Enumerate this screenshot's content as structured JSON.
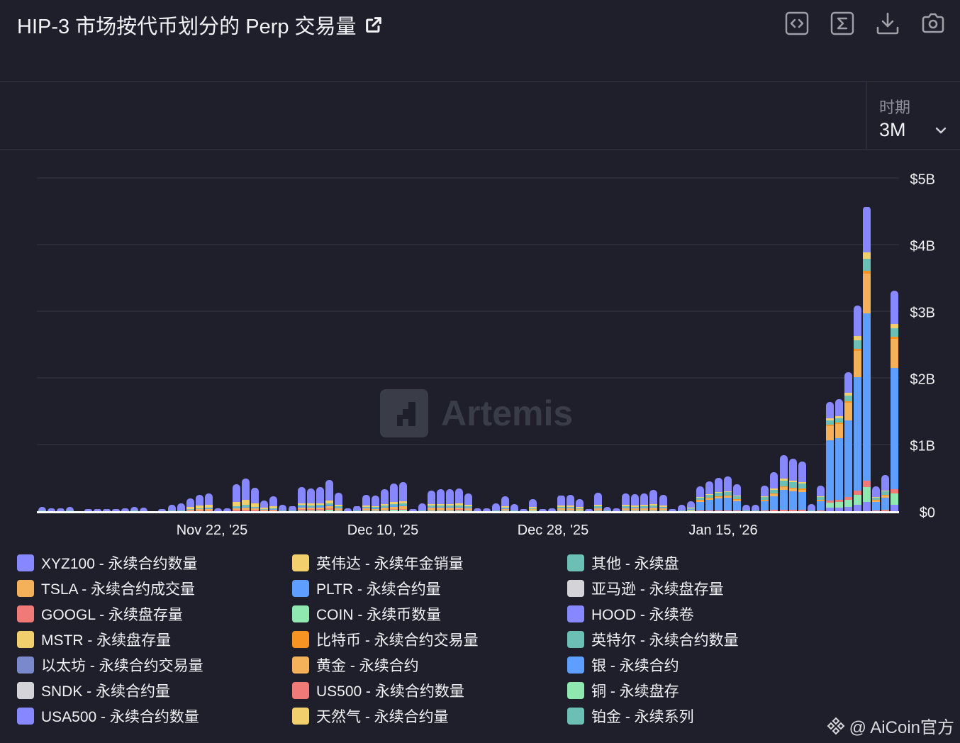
{
  "header": {
    "title": "HIP-3 市场按代币划分的 Perp 交易量",
    "external_link_icon": "external-link-icon",
    "tools": [
      {
        "name": "embed-code",
        "icon": "code-icon"
      },
      {
        "name": "formula",
        "icon": "sigma-icon"
      },
      {
        "name": "download",
        "icon": "download-icon"
      },
      {
        "name": "screenshot",
        "icon": "camera-icon"
      }
    ]
  },
  "period": {
    "label": "时期",
    "value": "3M"
  },
  "watermark": "Artemis",
  "credit": "@ AiCoin官方",
  "colors": {
    "background": "#1e1f2a",
    "purple": "#8787ff",
    "orange": "#f5b05a",
    "red": "#f07a78",
    "yellow": "#f0cf6c",
    "slate": "#7a88cc",
    "grey": "#d4d4d8",
    "blue": "#5e9eff",
    "green": "#8fe8b0",
    "deeporange": "#f79322",
    "teal": "#6bbfb5"
  },
  "chart_data": {
    "type": "bar",
    "stacked": true,
    "title": "HIP-3 市场按代币划分的 Perp 交易量",
    "xlabel": "",
    "ylabel": "",
    "ylim": [
      0,
      5000000000
    ],
    "yticks": [
      "$0",
      "$1B",
      "$2B",
      "$3B",
      "$4B",
      "$5B"
    ],
    "xticks": [
      {
        "label": "Nov 22, '25",
        "bar_index": 18
      },
      {
        "label": "Dec 10, '25",
        "bar_index": 36
      },
      {
        "label": "Dec 28, '25",
        "bar_index": 54
      },
      {
        "label": "Jan 15, '26",
        "bar_index": 72
      }
    ],
    "grid": true,
    "legend_position": "bottom",
    "unit": "USD billions",
    "series": [
      {
        "name": "XYZ100 - 永续合约数量",
        "color": "#8787ff"
      },
      {
        "name": "TSLA - 永续合约成交量",
        "color": "#f5b05a"
      },
      {
        "name": "GOOGL - 永续盘存量",
        "color": "#f07a78"
      },
      {
        "name": "MSTR - 永续盘存量",
        "color": "#f0cf6c"
      },
      {
        "name": "以太坊 - 永续合约交易量",
        "color": "#7a88cc"
      },
      {
        "name": "SNDK - 永续合约量",
        "color": "#d4d4d8"
      },
      {
        "name": "USA500 - 永续合约数量",
        "color": "#8787ff"
      },
      {
        "name": "英伟达 - 永续年金销量",
        "color": "#f0cf6c"
      },
      {
        "name": "PLTR - 永续合约量",
        "color": "#5e9eff"
      },
      {
        "name": "COIN - 永续币数量",
        "color": "#8fe8b0"
      },
      {
        "name": "比特币 - 永续合约交易量",
        "color": "#f79322"
      },
      {
        "name": "黄金 - 永续合约",
        "color": "#f5b05a"
      },
      {
        "name": "US500 - 永续合约数量",
        "color": "#f07a78"
      },
      {
        "name": "天然气 - 永续合约量",
        "color": "#f0cf6c"
      },
      {
        "name": "其他 - 永续盘",
        "color": "#6bbfb5"
      },
      {
        "name": "亚马逊 - 永续盘存量",
        "color": "#d4d4d8"
      },
      {
        "name": "HOOD - 永续卷",
        "color": "#8787ff"
      },
      {
        "name": "英特尔 - 永续合约数量",
        "color": "#6bbfb5"
      },
      {
        "name": "银 - 永续合约",
        "color": "#5e9eff"
      },
      {
        "name": "铜 - 永续盘存",
        "color": "#8fe8b0"
      },
      {
        "name": "铂金 - 永续系列",
        "color": "#6bbfb5"
      }
    ],
    "bar_totals_billion": [
      0.06,
      0.04,
      0.04,
      0.06,
      0.0,
      0.02,
      0.02,
      0.02,
      0.03,
      0.04,
      0.06,
      0.05,
      0.0,
      0.02,
      0.1,
      0.12,
      0.19,
      0.25,
      0.27,
      0.04,
      0.04,
      0.4,
      0.49,
      0.35,
      0.16,
      0.22,
      0.1,
      0.08,
      0.36,
      0.34,
      0.36,
      0.47,
      0.28,
      0.04,
      0.08,
      0.25,
      0.23,
      0.33,
      0.42,
      0.44,
      0.02,
      0.12,
      0.31,
      0.33,
      0.33,
      0.34,
      0.27,
      0.04,
      0.04,
      0.12,
      0.22,
      0.11,
      0.03,
      0.18,
      0.03,
      0.04,
      0.24,
      0.25,
      0.18,
      0.03,
      0.28,
      0.06,
      0.04,
      0.27,
      0.26,
      0.27,
      0.32,
      0.25,
      0.03,
      0.1,
      0.15,
      0.37,
      0.45,
      0.5,
      0.52,
      0.4,
      0.1,
      0.1,
      0.38,
      0.59,
      0.84,
      0.79,
      0.75,
      0.11,
      0.38,
      1.64,
      1.68,
      2.09,
      3.09,
      4.57,
      0.37,
      0.54,
      3.31
    ],
    "dominant_composition": {
      "early_period": "XYZ100 (purple) dominates with small MSTR/TSLA/GOOGL/其他 segments at bottom",
      "late_period": "PLTR/银 (blue) dominates with TSLA/黄金 (orange) and XYZ100 (purple) on top; peak ~$4.57B"
    }
  },
  "legend": [
    {
      "label": "XYZ100 - 永续合约数量",
      "color": "#8787ff"
    },
    {
      "label": "英伟达 - 永续年金销量",
      "color": "#f0cf6c"
    },
    {
      "label": "其他 - 永续盘",
      "color": "#6bbfb5"
    },
    {
      "label": "TSLA - 永续合约成交量",
      "color": "#f5b05a"
    },
    {
      "label": "PLTR - 永续合约量",
      "color": "#5e9eff"
    },
    {
      "label": "亚马逊 - 永续盘存量",
      "color": "#d4d4d8"
    },
    {
      "label": "GOOGL - 永续盘存量",
      "color": "#f07a78"
    },
    {
      "label": "COIN - 永续币数量",
      "color": "#8fe8b0"
    },
    {
      "label": "HOOD - 永续卷",
      "color": "#8787ff"
    },
    {
      "label": "MSTR - 永续盘存量",
      "color": "#f0cf6c"
    },
    {
      "label": "比特币 - 永续合约交易量",
      "color": "#f79322"
    },
    {
      "label": "英特尔 - 永续合约数量",
      "color": "#6bbfb5"
    },
    {
      "label": "以太坊 - 永续合约交易量",
      "color": "#7a88cc"
    },
    {
      "label": "黄金 - 永续合约",
      "color": "#f5b05a"
    },
    {
      "label": "银 - 永续合约",
      "color": "#5e9eff"
    },
    {
      "label": "SNDK - 永续合约量",
      "color": "#d4d4d8"
    },
    {
      "label": "US500 - 永续合约数量",
      "color": "#f07a78"
    },
    {
      "label": "铜 - 永续盘存",
      "color": "#8fe8b0"
    },
    {
      "label": "USA500 - 永续合约数量",
      "color": "#8787ff"
    },
    {
      "label": "天然气 - 永续合约量",
      "color": "#f0cf6c"
    },
    {
      "label": "铂金 - 永续系列",
      "color": "#6bbfb5"
    }
  ]
}
